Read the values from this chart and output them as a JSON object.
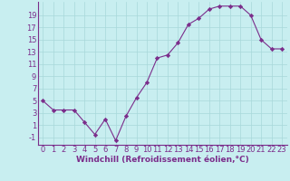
{
  "x": [
    0,
    1,
    2,
    3,
    4,
    5,
    6,
    7,
    8,
    9,
    10,
    11,
    12,
    13,
    14,
    15,
    16,
    17,
    18,
    19,
    20,
    21,
    22,
    23
  ],
  "y": [
    5,
    3.5,
    3.5,
    3.5,
    1.5,
    -0.5,
    2,
    -1.5,
    2.5,
    5.5,
    8,
    12,
    12.5,
    14.5,
    17.5,
    18.5,
    20,
    20.5,
    20.5,
    20.5,
    19,
    15,
    13.5,
    13.5
  ],
  "line_color": "#7B2D8B",
  "marker": "D",
  "marker_size": 2.2,
  "bg_color": "#c8eef0",
  "grid_color": "#a8d8da",
  "xlabel": "Windchill (Refroidissement éolien,°C)",
  "ylabel_ticks": [
    -1,
    1,
    3,
    5,
    7,
    9,
    11,
    13,
    15,
    17,
    19
  ],
  "xlim": [
    -0.5,
    23.5
  ],
  "ylim": [
    -2.2,
    21.2
  ],
  "tick_color": "#7B2D8B",
  "label_color": "#7B2D8B",
  "xlabel_fontsize": 6.5,
  "tick_fontsize": 6.0
}
